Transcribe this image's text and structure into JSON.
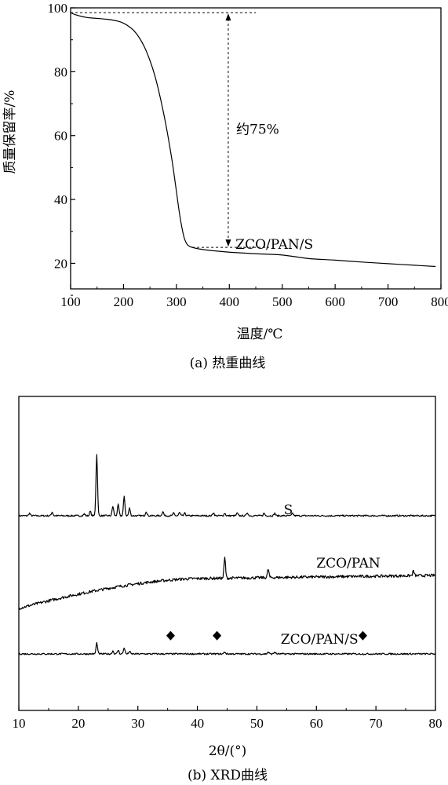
{
  "chart_data": [
    {
      "type": "line",
      "caption": "(a) 热重曲线",
      "xlabel": "温度/℃",
      "ylabel": "质量保留率/%",
      "xlim": [
        100,
        800
      ],
      "ylim": [
        12,
        100
      ],
      "xticks": [
        100,
        200,
        300,
        400,
        500,
        600,
        700,
        800
      ],
      "yticks": [
        20,
        40,
        60,
        80,
        100
      ],
      "grid": false,
      "series": [
        {
          "name": "ZCO/PAN/S",
          "x": [
            100,
            110,
            130,
            150,
            170,
            190,
            200,
            210,
            220,
            230,
            240,
            250,
            260,
            270,
            280,
            290,
            295,
            300,
            305,
            310,
            315,
            320,
            325,
            330,
            340,
            360,
            400,
            450,
            500,
            550,
            600,
            650,
            700,
            750,
            790
          ],
          "y": [
            98.5,
            97.8,
            97.0,
            96.7,
            96.4,
            95.8,
            95.2,
            94.2,
            92.8,
            90.6,
            87.6,
            83.5,
            78.3,
            71.5,
            63.5,
            54.0,
            48.5,
            42.5,
            36.5,
            31.5,
            27.8,
            26.0,
            25.3,
            25.0,
            24.6,
            24.1,
            23.5,
            23.0,
            22.6,
            21.5,
            21.0,
            20.4,
            19.9,
            19.4,
            19.0
          ]
        }
      ],
      "annotations": [
        {
          "text": "约75%",
          "x": 413,
          "y": 62
        },
        {
          "text": "ZCO/PAN/S",
          "x": 560,
          "y": 26
        }
      ],
      "range_marker": {
        "x": 398,
        "y_top": 98.5,
        "y_bottom": 25.0
      }
    },
    {
      "type": "line",
      "caption": "(b) XRD曲线",
      "xlabel": "2θ/(°)",
      "xlim": [
        10,
        80
      ],
      "xticks": [
        10,
        20,
        30,
        40,
        50,
        60,
        70,
        80
      ],
      "grid": false,
      "series": [
        {
          "name": "S",
          "offset": 620,
          "peaks": [
            [
              11.8,
              8
            ],
            [
              15.6,
              12
            ],
            [
              21.0,
              6
            ],
            [
              22.0,
              14
            ],
            [
              23.0,
              20
            ],
            [
              23.1,
              180
            ],
            [
              25.8,
              30
            ],
            [
              26.7,
              35
            ],
            [
              27.7,
              60
            ],
            [
              28.6,
              24
            ],
            [
              31.4,
              14
            ],
            [
              34.2,
              14
            ],
            [
              36.0,
              8
            ],
            [
              37.0,
              10
            ],
            [
              37.9,
              8
            ],
            [
              42.7,
              10
            ],
            [
              44.6,
              8
            ],
            [
              46.7,
              8
            ],
            [
              48.4,
              10
            ],
            [
              51.2,
              8
            ],
            [
              53.0,
              8
            ],
            [
              56.0,
              8
            ]
          ]
        },
        {
          "name": "ZCO/PAN",
          "offset": 420,
          "peaks": [
            [
              44.6,
              65
            ],
            [
              51.9,
              27
            ],
            [
              76.3,
              15
            ]
          ]
        },
        {
          "name": "ZCO/PAN/S",
          "offset": 180,
          "peaks": [
            [
              23.1,
              35
            ],
            [
              25.8,
              10
            ],
            [
              26.7,
              12
            ],
            [
              27.7,
              20
            ],
            [
              28.6,
              8
            ],
            [
              44.6,
              6
            ],
            [
              51.9,
              6
            ],
            [
              53.0,
              6
            ]
          ]
        }
      ],
      "markers": [
        35.5,
        43.3,
        67.8
      ],
      "labels": [
        {
          "text": "S",
          "x": 54.5,
          "y": 640
        },
        {
          "text": "ZCO/PAN",
          "x": 60.0,
          "y": 470
        },
        {
          "text": "ZCO/PAN/S",
          "x": 54.0,
          "y": 228
        }
      ]
    }
  ]
}
